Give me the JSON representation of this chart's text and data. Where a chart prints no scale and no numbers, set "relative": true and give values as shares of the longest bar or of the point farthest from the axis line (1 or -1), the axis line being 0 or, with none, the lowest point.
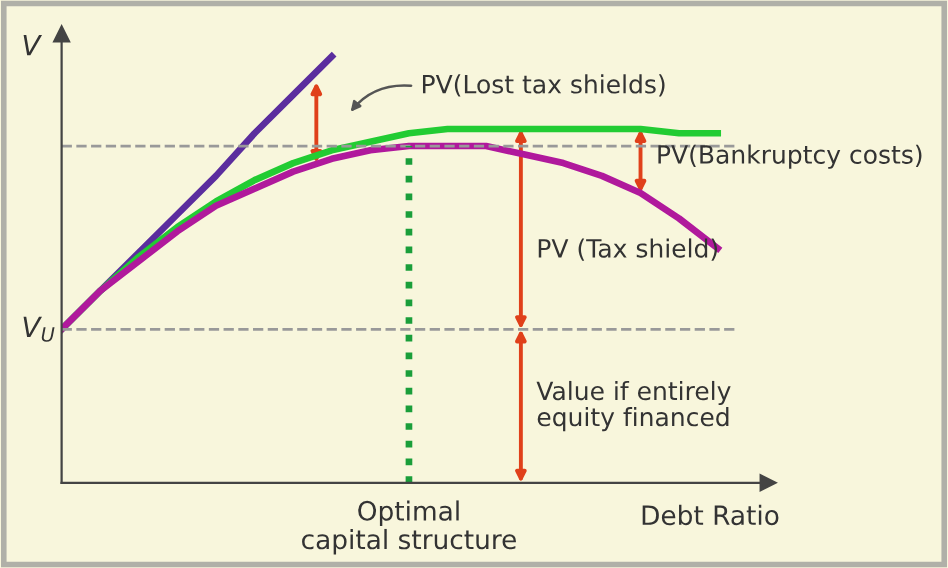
{
  "chart_data": {
    "type": "line",
    "relative": true,
    "ylabel": "V",
    "xlabel": "Debt Ratio",
    "categories": [
      null,
      null,
      null,
      null,
      null,
      null,
      null,
      null,
      null,
      null,
      null,
      null,
      null,
      null,
      null,
      null,
      null,
      null
    ],
    "series": [
      {
        "color": "#5b2d9e",
        "values": [
          0.36,
          0.45,
          0.54,
          0.63,
          0.72,
          0.82,
          0.91,
          1.0,
          null,
          null,
          null,
          null,
          null,
          null,
          null,
          null,
          null,
          null
        ]
      },
      {
        "color": "#22cc33",
        "values": [
          0.36,
          0.45,
          0.53,
          0.6,
          0.66,
          0.71,
          0.75,
          0.78,
          0.8,
          0.82,
          0.83,
          0.83,
          0.83,
          0.83,
          0.83,
          0.83,
          0.82,
          0.82
        ]
      },
      {
        "color": "#b0199c",
        "values": [
          0.36,
          0.45,
          0.52,
          0.59,
          0.65,
          0.69,
          0.73,
          0.76,
          0.78,
          0.79,
          0.79,
          0.79,
          0.77,
          0.75,
          0.72,
          0.68,
          0.62,
          0.55
        ]
      }
    ],
    "ref_lines": [
      {
        "axis": "y",
        "value": 0.36,
        "label": "V$_{U}$",
        "color": "#999999",
        "line_style": "dashed"
      },
      {
        "axis": "y",
        "value": 0.79,
        "label": null,
        "color": "#999999",
        "line_style": "dashed"
      }
    ],
    "annotations": [
      "PV(Lost tax shields)",
      "PV(Bankruptcy costs)",
      "PV (Tax shield)",
      "Value if entirely\nequity financed",
      "Optimal\ncapital structure"
    ],
    "legend": false,
    "marker": "none",
    "line_style": "solid"
  }
}
